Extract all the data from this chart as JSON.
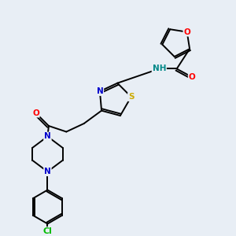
{
  "bg_color": "#e8eef5",
  "atom_colors": {
    "N": "#0000cc",
    "O": "#ff0000",
    "S": "#ccaa00",
    "Cl": "#00bb00",
    "C": "#000000",
    "H": "#008888"
  },
  "figsize": [
    3.0,
    3.0
  ],
  "dpi": 100,
  "lw": 1.4,
  "fs": 7.5
}
